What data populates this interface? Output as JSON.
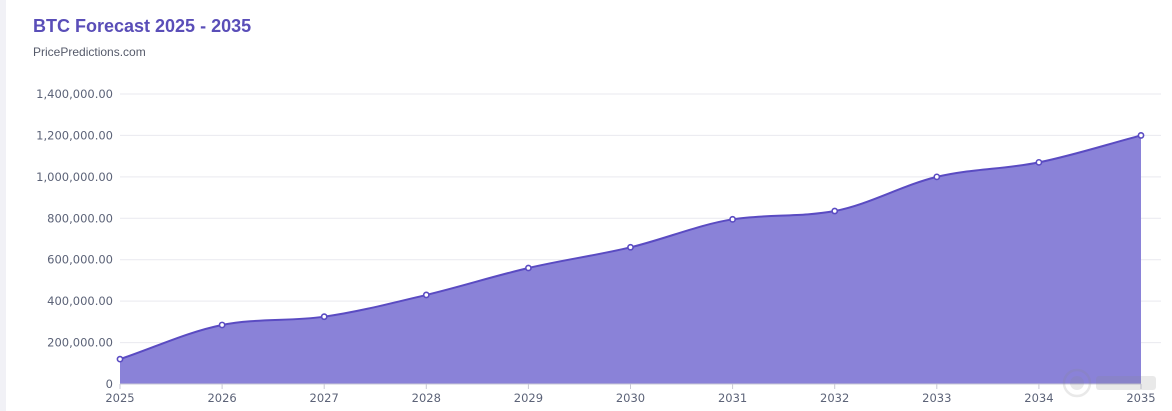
{
  "title": "BTC Forecast 2025 - 2035",
  "subtitle": "PricePredictions.com",
  "colors": {
    "title": "#5a4eb8",
    "line": "#5a4bc2",
    "area": "#8a82d8",
    "grid": "#e9e9ef",
    "tick_text": "#5c6378"
  },
  "chart_data": {
    "type": "area",
    "title": "BTC Forecast 2025 - 2035",
    "subtitle": "PricePredictions.com",
    "x": [
      "2025",
      "2026",
      "2027",
      "2028",
      "2029",
      "2030",
      "2031",
      "2032",
      "2033",
      "2034",
      "2035"
    ],
    "series": [
      {
        "values": [
          120000,
          285000,
          325000,
          430000,
          560000,
          660000,
          795000,
          835000,
          1000000,
          1070000,
          1200000
        ]
      }
    ],
    "ylim": [
      0,
      1400000
    ],
    "yticks": [
      0,
      200000,
      400000,
      600000,
      800000,
      1000000,
      1200000,
      1400000
    ],
    "ytick_labels": [
      "0",
      "200,000.00",
      "400,000.00",
      "600,000.00",
      "800,000.00",
      "1,000,000.00",
      "1,200,000.00",
      "1,400,000.00"
    ],
    "grid": true,
    "legend": "none"
  }
}
